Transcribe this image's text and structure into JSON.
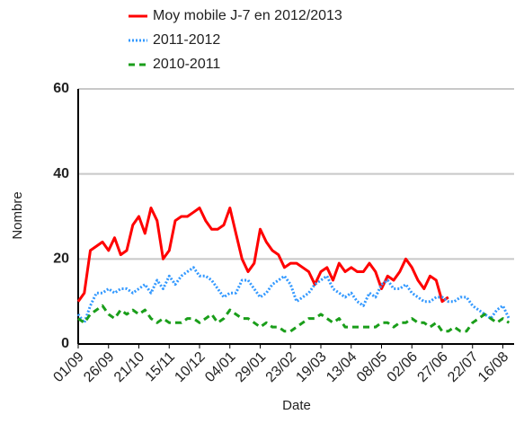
{
  "chart_data": {
    "type": "line",
    "x_label": "Date",
    "y_label": "Nombre",
    "categories": [
      "01/09",
      null,
      null,
      null,
      null,
      "26/09",
      null,
      null,
      null,
      null,
      "21/10",
      null,
      null,
      null,
      null,
      "15/11",
      null,
      null,
      null,
      null,
      "10/12",
      null,
      null,
      null,
      null,
      "04/01",
      null,
      null,
      null,
      null,
      "29/01",
      null,
      null,
      null,
      null,
      "23/02",
      null,
      null,
      null,
      null,
      "19/03",
      null,
      null,
      null,
      null,
      "13/04",
      null,
      null,
      null,
      null,
      "08/05",
      null,
      null,
      null,
      null,
      "02/06",
      null,
      null,
      null,
      null,
      "27/06",
      null,
      null,
      null,
      null,
      "22/07",
      null,
      null,
      null,
      null,
      "16/08",
      null
    ],
    "series": [
      {
        "name": "Moy mobile J-7 en 2012/2013",
        "color": "#ff0000",
        "dash": "solid",
        "values": [
          10,
          12,
          22,
          23,
          24,
          22,
          25,
          21,
          22,
          28,
          30,
          26,
          32,
          29,
          20,
          22,
          29,
          30,
          30,
          31,
          32,
          29,
          27,
          27,
          28,
          32,
          26,
          20,
          17,
          19,
          27,
          24,
          22,
          21,
          18,
          19,
          19,
          18,
          17,
          14,
          17,
          18,
          15,
          19,
          17,
          18,
          17,
          17,
          19,
          17,
          13,
          16,
          15,
          17,
          20,
          18,
          15,
          13,
          16,
          15,
          10,
          11,
          null,
          null,
          null,
          null,
          null,
          null,
          null,
          null,
          null,
          null
        ]
      },
      {
        "name": "2011-2012",
        "color": "#3399ff",
        "dash": "dotted",
        "values": [
          7,
          5,
          9,
          12,
          12,
          13,
          12,
          13,
          13,
          12,
          13,
          14,
          12,
          15,
          13,
          16,
          14,
          16,
          17,
          18,
          16,
          16,
          15,
          13,
          11,
          12,
          12,
          15,
          15,
          13,
          11,
          12,
          14,
          15,
          16,
          14,
          10,
          11,
          12,
          14,
          15,
          16,
          13,
          12,
          11,
          12,
          10,
          9,
          12,
          11,
          14,
          15,
          13,
          13,
          14,
          12,
          11,
          10,
          10,
          11,
          11,
          10,
          10,
          11,
          11,
          9,
          8,
          7,
          6,
          8,
          9,
          6
        ]
      },
      {
        "name": "2010-2011",
        "color": "#1a9e1a",
        "dash": "dashed",
        "values": [
          6,
          5,
          7,
          8,
          9,
          7,
          6,
          8,
          7,
          8,
          7,
          8,
          6,
          5,
          6,
          5,
          5,
          5,
          6,
          6,
          5,
          6,
          7,
          5,
          6,
          8,
          7,
          6,
          6,
          5,
          4,
          5,
          4,
          4,
          3,
          3,
          4,
          5,
          6,
          6,
          7,
          6,
          5,
          6,
          4,
          4,
          4,
          4,
          4,
          4,
          5,
          5,
          4,
          5,
          5,
          6,
          5,
          5,
          4,
          5,
          3,
          3,
          4,
          3,
          3,
          5,
          6,
          7,
          6,
          5,
          6,
          5
        ]
      }
    ],
    "ylim": [
      0,
      60
    ],
    "yticks": [
      0,
      20,
      40,
      60
    ],
    "grid": true
  }
}
